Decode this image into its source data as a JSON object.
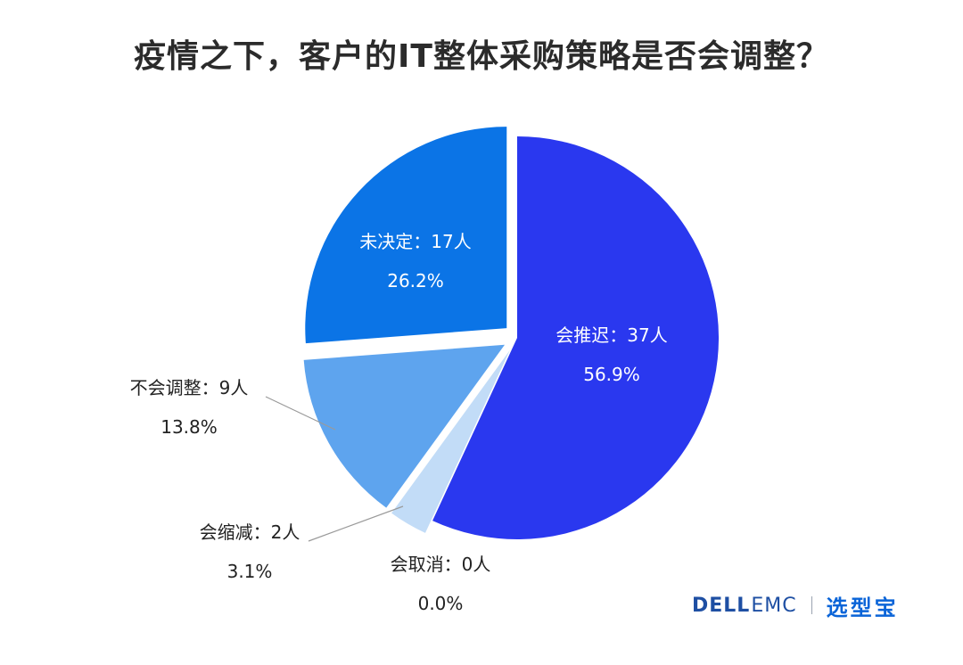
{
  "chart_data": {
    "type": "pie",
    "title": "疫情之下，客户的IT整体采购策略是否会调整？",
    "slices": [
      {
        "label": "会推迟：37人",
        "count": 37,
        "percent": "56.9%",
        "value": 56.9,
        "color": "#2a38ef",
        "exploded": false
      },
      {
        "label": "会取消：0人",
        "count": 0,
        "percent": "0.0%",
        "value": 0.0,
        "color": "#0a5fd6",
        "exploded": false
      },
      {
        "label": "会缩减：2人",
        "count": 2,
        "percent": "3.1%",
        "value": 3.1,
        "color": "#c2dcf7",
        "exploded": true
      },
      {
        "label": "不会调整：9人",
        "count": 9,
        "percent": "13.8%",
        "value": 13.8,
        "color": "#5ea4ee",
        "exploded": true
      },
      {
        "label": "未决定：17人",
        "count": 17,
        "percent": "26.2%",
        "value": 26.2,
        "color": "#0b74e6",
        "exploded": true
      }
    ]
  },
  "logo": {
    "dell": "DELL",
    "emc": "EMC",
    "brand": "选型宝"
  }
}
